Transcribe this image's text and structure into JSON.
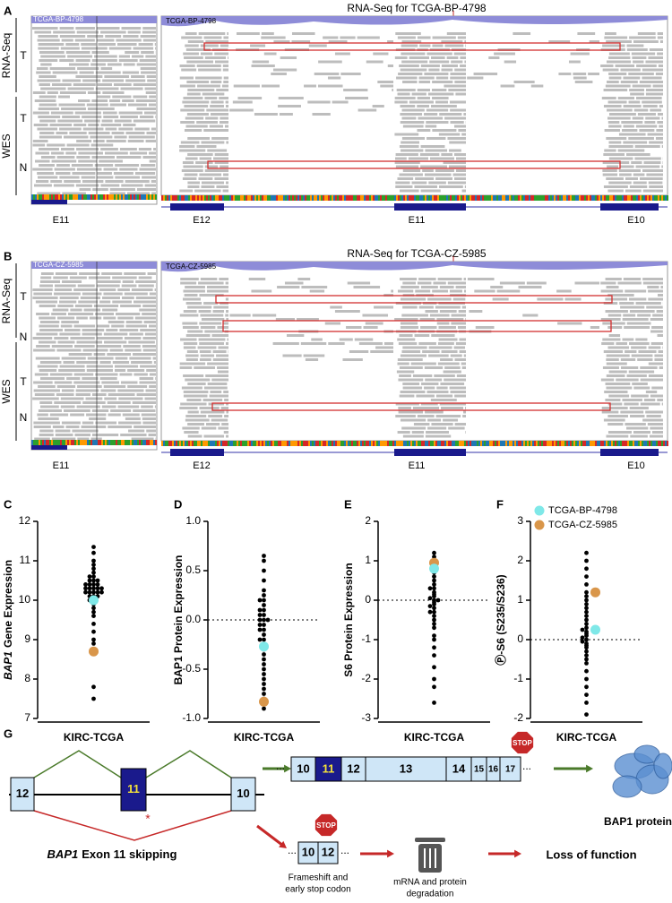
{
  "igv_panels": [
    {
      "label": "A",
      "sample": "TCGA-BP-4798",
      "title": "RNA-Seq for TCGA-BP-4798",
      "rna_label": "RNA-Seq",
      "wes_label": "WES",
      "tracks": [
        "T",
        "T",
        "N"
      ],
      "left_exon": "E11",
      "exons": [
        "E12",
        "E11",
        "E10"
      ]
    },
    {
      "label": "B",
      "sample": "TCGA-CZ-5985",
      "title": "RNA-Seq for TCGA-CZ-5985",
      "rna_label": "RNA-Seq",
      "wes_label": "WES",
      "tracks": [
        "T",
        "N",
        "T",
        "N"
      ],
      "left_exon": "E11",
      "exons": [
        "E12",
        "E11",
        "E10"
      ]
    }
  ],
  "chart_data": [
    {
      "type": "beeswarm",
      "panel": "C",
      "ylabel_gene": "BAP1",
      "ylabel": "Gene Expression",
      "xlabel": "KIRC-TCGA",
      "ylim": [
        7,
        12
      ],
      "yticks": [
        7,
        8,
        9,
        10,
        11,
        12
      ],
      "color": "#000000",
      "zero_line": false,
      "values": [
        10.3,
        10.2,
        10.4,
        10.1,
        10.5,
        10.3,
        10.0,
        10.6,
        10.2,
        10.4,
        9.9,
        10.3,
        10.7,
        10.1,
        10.5,
        10.2,
        9.8,
        10.4,
        10.8,
        10.3,
        9.6,
        10.9,
        10.2,
        10.0,
        11.0,
        9.4,
        10.4,
        11.2,
        9.2,
        10.3,
        8.9,
        11.35,
        9.0,
        10.1,
        10.6,
        7.8,
        7.5,
        10.5,
        10.2,
        9.7
      ],
      "highlight_points": [
        {
          "color": "#7fe8e8",
          "value": 10.0
        },
        {
          "color": "#d9964a",
          "value": 8.7
        }
      ]
    },
    {
      "type": "beeswarm",
      "panel": "D",
      "ylabel": "BAP1 Protein Expression",
      "xlabel": "KIRC-TCGA",
      "ylim": [
        -1,
        1
      ],
      "yticks": [
        {
          "value": -1,
          "label": "-1.0"
        },
        {
          "value": -0.5,
          "label": "-0.5"
        },
        {
          "value": 0,
          "label": "0.0"
        },
        {
          "value": 0.5,
          "label": "0.5"
        },
        {
          "value": 1,
          "label": "1.0"
        }
      ],
      "color": "#000000",
      "zero_line": true,
      "values": [
        0.0,
        -0.1,
        0.1,
        -0.05,
        0.05,
        -0.2,
        0.15,
        -0.15,
        0.2,
        -0.3,
        0.3,
        0.0,
        -0.25,
        0.25,
        -0.4,
        0.4,
        -0.1,
        0.1,
        -0.5,
        0.5,
        -0.35,
        -0.6,
        0.6,
        -0.45,
        -0.7,
        0.65,
        -0.55,
        -0.8,
        -0.9,
        -0.05,
        0.05,
        -0.65,
        0.0,
        -0.2,
        0.2,
        -0.75
      ],
      "highlight_points": [
        {
          "color": "#7fe8e8",
          "value": -0.27
        },
        {
          "color": "#d9964a",
          "value": -0.83
        }
      ]
    },
    {
      "type": "beeswarm",
      "panel": "E",
      "ylabel": "S6 Protein Expression",
      "xlabel": "KIRC-TCGA",
      "ylim": [
        -3,
        2
      ],
      "yticks": [
        -3,
        -2,
        -1,
        0,
        1,
        2
      ],
      "color": "#000000",
      "zero_line": true,
      "values": [
        0.0,
        0.1,
        -0.1,
        0.2,
        -0.2,
        0.3,
        -0.3,
        0.05,
        -0.05,
        0.5,
        -0.5,
        0.4,
        -0.4,
        0.7,
        -0.7,
        0.6,
        -0.6,
        0.9,
        -0.9,
        1.0,
        -1.0,
        1.1,
        -1.2,
        1.2,
        -1.4,
        -1.7,
        -2.0,
        -2.2,
        -2.6,
        0.15,
        -0.15,
        0.0,
        0.3,
        -0.3,
        0.8
      ],
      "highlight_points": [
        {
          "color": "#d9964a",
          "value": 0.95
        },
        {
          "color": "#7fe8e8",
          "value": 0.8
        }
      ]
    },
    {
      "type": "beeswarm",
      "panel": "F",
      "ylabel": "Ⓟ-S6 (S235/S236)",
      "xlabel": "KIRC-TCGA",
      "ylim": [
        -2,
        3
      ],
      "yticks": [
        -2,
        -1,
        0,
        1,
        2,
        3
      ],
      "color": "#000000",
      "zero_line": true,
      "legend": "top-left",
      "values": [
        0.1,
        0.2,
        0.0,
        0.3,
        -0.1,
        0.4,
        -0.2,
        0.5,
        -0.3,
        0.6,
        -0.4,
        0.8,
        -0.6,
        1.0,
        -0.8,
        1.2,
        -1.0,
        1.4,
        -1.2,
        1.6,
        -1.4,
        1.8,
        -1.6,
        2.0,
        2.2,
        -1.9,
        0.15,
        0.25,
        -0.05,
        0.7,
        -0.5,
        0.9,
        0.05,
        -0.15,
        1.1
      ],
      "series": [
        {
          "name": "TCGA-BP-4798",
          "color": "#7fe8e8",
          "values": [
            0.25
          ]
        },
        {
          "name": "TCGA-CZ-5985",
          "color": "#d9964a",
          "values": [
            1.2
          ]
        }
      ]
    }
  ],
  "diagram": {
    "label": "G",
    "pre_mrna_exons": [
      "12",
      "11",
      "10"
    ],
    "star": "*",
    "caption_gene": "BAP1",
    "caption": "Exon 11 skipping",
    "transcript_exons": [
      "10",
      "11",
      "12",
      "13",
      "14",
      "15",
      "16",
      "17"
    ],
    "stop": "STOP",
    "protein": "BAP1 protein",
    "skipped_exons": [
      "10",
      "12"
    ],
    "frameshift": [
      "Frameshift and",
      "early stop codon"
    ],
    "degradation": [
      "mRNA and protein",
      "degradation"
    ],
    "outcome": "Loss of function",
    "ellipsis": "..."
  }
}
